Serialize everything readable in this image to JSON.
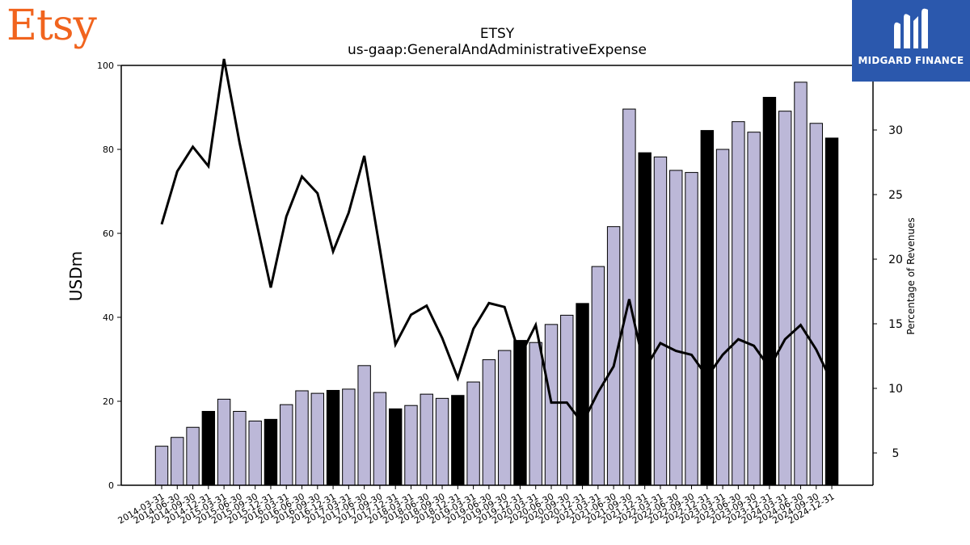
{
  "brand": {
    "logo_text": "Etsy",
    "partner_logo_text": "MIDGARD FINANCE"
  },
  "colors": {
    "bar_default": "#bcb8d8",
    "bar_highlight": "#000000",
    "line": "#000000",
    "brand_orange": "#f1641e",
    "partner_blue": "#2b58ad"
  },
  "chart_data": {
    "type": "bar",
    "title": "ETSY",
    "subtitle": "us-gaap:GeneralAndAdministrativeExpense",
    "ylabel": "USDm",
    "y2label": "Percentage of Revenues",
    "ylim": [
      0,
      100
    ],
    "y2lim": [
      2.5,
      35
    ],
    "yticks": [
      0,
      20,
      40,
      60,
      80,
      100
    ],
    "y2ticks": [
      5,
      10,
      15,
      20,
      25,
      30
    ],
    "grid": false,
    "categories": [
      "2014-03-31",
      "2014-06-30",
      "2014-09-30",
      "2014-12-31",
      "2015-03-31",
      "2015-06-30",
      "2015-09-30",
      "2015-12-31",
      "2016-03-31",
      "2016-06-30",
      "2016-09-30",
      "2016-12-31",
      "2017-03-31",
      "2017-06-30",
      "2017-09-30",
      "2017-12-31",
      "2018-03-31",
      "2018-06-30",
      "2018-09-30",
      "2018-12-31",
      "2019-03-31",
      "2019-06-30",
      "2019-09-30",
      "2019-12-31",
      "2020-03-31",
      "2020-06-30",
      "2020-09-30",
      "2020-12-31",
      "2021-03-31",
      "2021-06-30",
      "2021-09-30",
      "2021-12-31",
      "2022-03-31",
      "2022-06-30",
      "2022-09-30",
      "2022-12-31",
      "2023-03-31",
      "2023-06-30",
      "2023-09-30",
      "2023-12-31",
      "2024-03-31",
      "2024-06-30",
      "2024-09-30",
      "2024-12-31"
    ],
    "series": [
      {
        "axis": "left",
        "kind": "bar",
        "values": [
          9.3,
          11.4,
          13.8,
          17.6,
          20.5,
          17.6,
          15.3,
          15.7,
          19.2,
          22.5,
          21.9,
          22.6,
          22.9,
          28.5,
          22.1,
          18.2,
          19.0,
          21.7,
          20.7,
          21.4,
          24.6,
          29.9,
          32.1,
          34.5,
          34.0,
          38.3,
          40.5,
          43.3,
          52.1,
          61.6,
          89.6,
          79.2,
          78.2,
          75.0,
          74.5,
          84.5,
          80.0,
          86.6,
          84.1,
          92.4,
          89.1,
          96.0,
          86.2,
          82.7
        ],
        "highlight": [
          false,
          false,
          false,
          true,
          false,
          false,
          false,
          true,
          false,
          false,
          false,
          true,
          false,
          false,
          false,
          true,
          false,
          false,
          false,
          true,
          false,
          false,
          false,
          true,
          false,
          false,
          false,
          true,
          false,
          false,
          false,
          true,
          false,
          false,
          false,
          true,
          false,
          false,
          false,
          true,
          false,
          false,
          false,
          true
        ]
      },
      {
        "axis": "right",
        "kind": "line",
        "values": [
          22.7,
          26.8,
          28.7,
          27.2,
          35.5,
          29.0,
          23.3,
          17.8,
          23.3,
          26.4,
          25.1,
          20.6,
          23.6,
          28.0,
          20.8,
          13.4,
          15.7,
          16.4,
          13.9,
          10.8,
          14.6,
          16.6,
          16.3,
          12.5,
          14.9,
          8.9,
          8.9,
          7.3,
          9.7,
          11.7,
          16.9,
          11.5,
          13.5,
          12.9,
          12.6,
          10.9,
          12.6,
          13.8,
          13.3,
          11.6,
          13.8,
          14.9,
          13.0,
          10.5
        ]
      }
    ]
  }
}
